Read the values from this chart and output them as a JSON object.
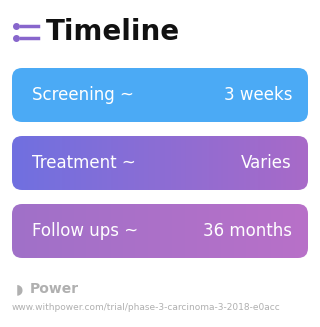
{
  "title": "Timeline",
  "background_color": "#ffffff",
  "rows": [
    {
      "label": "Screening ~",
      "value": "3 weeks",
      "color_left": "#4baaf5",
      "color_right": "#4baaf5"
    },
    {
      "label": "Treatment ~",
      "value": "Varies",
      "color_left": "#7070e0",
      "color_right": "#a86ac8"
    },
    {
      "label": "Follow ups ~",
      "value": "36 months",
      "color_left": "#a070c8",
      "color_right": "#b870c8"
    }
  ],
  "footer_text": "Power",
  "footer_url": "www.withpower.com/trial/phase-3-carcinoma-3-2018-e0acc",
  "title_fontsize": 20,
  "row_fontsize": 12,
  "footer_fontsize": 9,
  "icon_color": "#8866cc",
  "footer_color": "#b0b0b0",
  "fig_width": 3.2,
  "fig_height": 3.27,
  "dpi": 100
}
